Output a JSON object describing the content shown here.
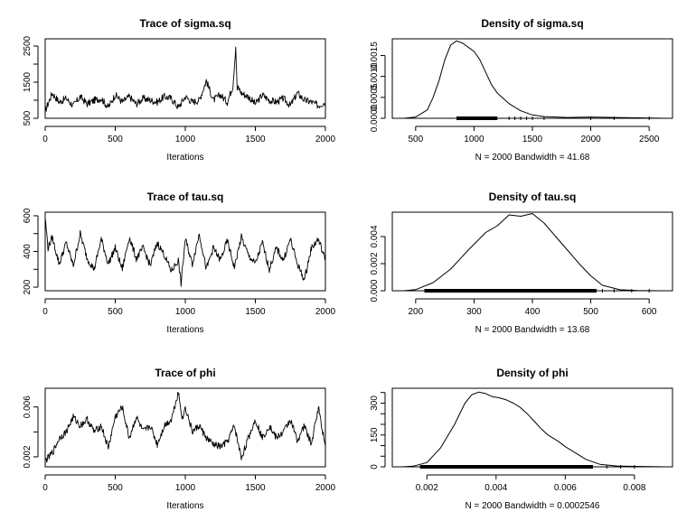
{
  "chart_data": [
    {
      "type": "line",
      "title": "Trace of sigma.sq",
      "xlabel": "Iterations",
      "ylabel": "",
      "xlim": [
        0,
        2000
      ],
      "ylim": [
        500,
        2700
      ],
      "xticks": [
        "0",
        "500",
        "1000",
        "1500",
        "2000"
      ],
      "yticks": [
        "500",
        "1500",
        "2500"
      ],
      "extra_yticks": [
        "1000",
        "2000"
      ],
      "x": [
        0,
        50,
        100,
        150,
        200,
        250,
        300,
        350,
        400,
        450,
        500,
        550,
        600,
        650,
        700,
        750,
        800,
        850,
        900,
        950,
        1000,
        1050,
        1100,
        1150,
        1200,
        1250,
        1300,
        1340,
        1360,
        1370,
        1380,
        1400,
        1450,
        1500,
        1550,
        1600,
        1650,
        1700,
        1750,
        1800,
        1850,
        1900,
        1950,
        2000
      ],
      "values": [
        700,
        1200,
        950,
        1050,
        850,
        1100,
        900,
        1000,
        1050,
        800,
        1150,
        950,
        1100,
        900,
        1050,
        1000,
        950,
        1100,
        1050,
        800,
        1100,
        950,
        1000,
        1550,
        1000,
        1150,
        950,
        1400,
        2500,
        1300,
        1350,
        1200,
        1100,
        900,
        1150,
        1000,
        950,
        1050,
        850,
        1200,
        1000,
        950,
        850,
        950
      ]
    },
    {
      "type": "line",
      "title": "Density of sigma.sq",
      "xlabel": "N = 2000   Bandwidth = 41.68",
      "ylabel": "",
      "xlim": [
        300,
        2700
      ],
      "ylim": [
        0,
        0.0019
      ],
      "xticks": [
        "500",
        "1000",
        "1500",
        "2000",
        "2500"
      ],
      "yticks": [
        "0.0000",
        "0.0005",
        "0.0010",
        "0.0015"
      ],
      "x": [
        400,
        500,
        600,
        650,
        700,
        750,
        800,
        850,
        900,
        950,
        1000,
        1050,
        1100,
        1150,
        1200,
        1300,
        1400,
        1500,
        1600,
        1800,
        2000,
        2200,
        2400,
        2650
      ],
      "values": [
        0,
        3e-05,
        0.0002,
        0.0005,
        0.0009,
        0.0014,
        0.00175,
        0.00185,
        0.0018,
        0.0017,
        0.0016,
        0.0014,
        0.0011,
        0.0008,
        0.0006,
        0.00035,
        0.00018,
        8e-05,
        4e-05,
        2e-05,
        3e-05,
        2e-05,
        1e-05,
        0
      ],
      "rug": [
        850,
        1200
      ],
      "rug_scattered": [
        1300,
        1350,
        1400,
        1450,
        1500,
        1600,
        2000,
        2200,
        2500
      ]
    },
    {
      "type": "line",
      "title": "Trace of tau.sq",
      "xlabel": "Iterations",
      "ylabel": "",
      "xlim": [
        0,
        2000
      ],
      "ylim": [
        180,
        620
      ],
      "xticks": [
        "0",
        "500",
        "1000",
        "1500",
        "2000"
      ],
      "yticks": [
        "200",
        "400",
        "600"
      ],
      "extra_yticks": [
        "300",
        "500"
      ],
      "x": [
        0,
        20,
        50,
        100,
        150,
        200,
        250,
        300,
        350,
        400,
        450,
        500,
        550,
        600,
        650,
        700,
        750,
        800,
        850,
        900,
        950,
        970,
        1000,
        1050,
        1100,
        1150,
        1200,
        1250,
        1300,
        1350,
        1400,
        1450,
        1500,
        1550,
        1600,
        1650,
        1700,
        1750,
        1800,
        1850,
        1900,
        1950,
        2000
      ],
      "values": [
        590,
        420,
        480,
        330,
        450,
        320,
        500,
        360,
        300,
        470,
        330,
        420,
        300,
        480,
        360,
        420,
        320,
        450,
        380,
        290,
        350,
        220,
        470,
        330,
        500,
        300,
        420,
        350,
        460,
        310,
        480,
        380,
        330,
        450,
        300,
        420,
        350,
        470,
        330,
        240,
        420,
        470,
        350
      ]
    },
    {
      "type": "line",
      "title": "Density of tau.sq",
      "xlabel": "N = 2000   Bandwidth = 13.68",
      "ylabel": "",
      "xlim": [
        160,
        640
      ],
      "ylim": [
        0,
        0.0058
      ],
      "xticks": [
        "200",
        "300",
        "400",
        "500",
        "600"
      ],
      "yticks": [
        "0.000",
        "0.002",
        "0.004"
      ],
      "x": [
        180,
        200,
        230,
        260,
        290,
        320,
        340,
        360,
        380,
        400,
        420,
        440,
        460,
        480,
        500,
        520,
        550,
        580,
        620
      ],
      "values": [
        0,
        8e-05,
        0.0006,
        0.0016,
        0.003,
        0.0043,
        0.0048,
        0.0056,
        0.0055,
        0.0057,
        0.005,
        0.004,
        0.003,
        0.002,
        0.0011,
        0.0004,
        7e-05,
        2e-05,
        0
      ],
      "rug": [
        215,
        510
      ],
      "rug_scattered": [
        520,
        540,
        570,
        600
      ]
    },
    {
      "type": "line",
      "title": "Trace of phi",
      "xlabel": "Iterations",
      "ylabel": "",
      "xlim": [
        0,
        2000
      ],
      "ylim": [
        0.0012,
        0.0075
      ],
      "xticks": [
        "0",
        "500",
        "1000",
        "1500",
        "2000"
      ],
      "yticks": [
        "0.002",
        "0.006"
      ],
      "extra_yticks": [
        "0.004"
      ],
      "x": [
        0,
        30,
        60,
        100,
        150,
        200,
        250,
        300,
        350,
        400,
        450,
        500,
        550,
        600,
        650,
        700,
        750,
        800,
        850,
        900,
        950,
        980,
        1000,
        1050,
        1100,
        1150,
        1200,
        1250,
        1300,
        1350,
        1400,
        1450,
        1500,
        1550,
        1600,
        1650,
        1700,
        1750,
        1800,
        1850,
        1900,
        1950,
        2000
      ],
      "values": [
        0.0017,
        0.002,
        0.0025,
        0.0035,
        0.004,
        0.0052,
        0.0045,
        0.005,
        0.004,
        0.0045,
        0.0027,
        0.0052,
        0.006,
        0.0035,
        0.0052,
        0.004,
        0.0045,
        0.003,
        0.0045,
        0.005,
        0.0072,
        0.005,
        0.006,
        0.004,
        0.0045,
        0.0035,
        0.003,
        0.0028,
        0.0032,
        0.0045,
        0.0019,
        0.0035,
        0.005,
        0.0035,
        0.0045,
        0.0035,
        0.004,
        0.005,
        0.0033,
        0.0045,
        0.003,
        0.006,
        0.0028
      ]
    },
    {
      "type": "line",
      "title": "Density of phi",
      "xlabel": "N = 2000   Bandwidth = 0.0002546",
      "ylabel": "",
      "xlim": [
        0.001,
        0.0091
      ],
      "ylim": [
        0,
        370
      ],
      "xticks": [
        "0.002",
        "0.004",
        "0.006",
        "0.008"
      ],
      "yticks": [
        "0",
        "150",
        "300"
      ],
      "extra_yticks": [
        "50",
        "100",
        "200",
        "250",
        "350"
      ],
      "x": [
        0.0013,
        0.0016,
        0.002,
        0.0024,
        0.0028,
        0.0031,
        0.0033,
        0.0035,
        0.0037,
        0.0039,
        0.0041,
        0.0043,
        0.0045,
        0.0047,
        0.0049,
        0.0051,
        0.0053,
        0.0055,
        0.0058,
        0.006,
        0.0063,
        0.0066,
        0.007,
        0.0075,
        0.008,
        0.0089
      ],
      "values": [
        0,
        3,
        20,
        90,
        200,
        300,
        340,
        352,
        345,
        330,
        325,
        315,
        300,
        280,
        250,
        215,
        180,
        150,
        120,
        95,
        65,
        35,
        12,
        4,
        2,
        0
      ],
      "rug": [
        0.0018,
        0.0068
      ],
      "rug_scattered": [
        0.0072,
        0.0076,
        0.008
      ]
    }
  ]
}
